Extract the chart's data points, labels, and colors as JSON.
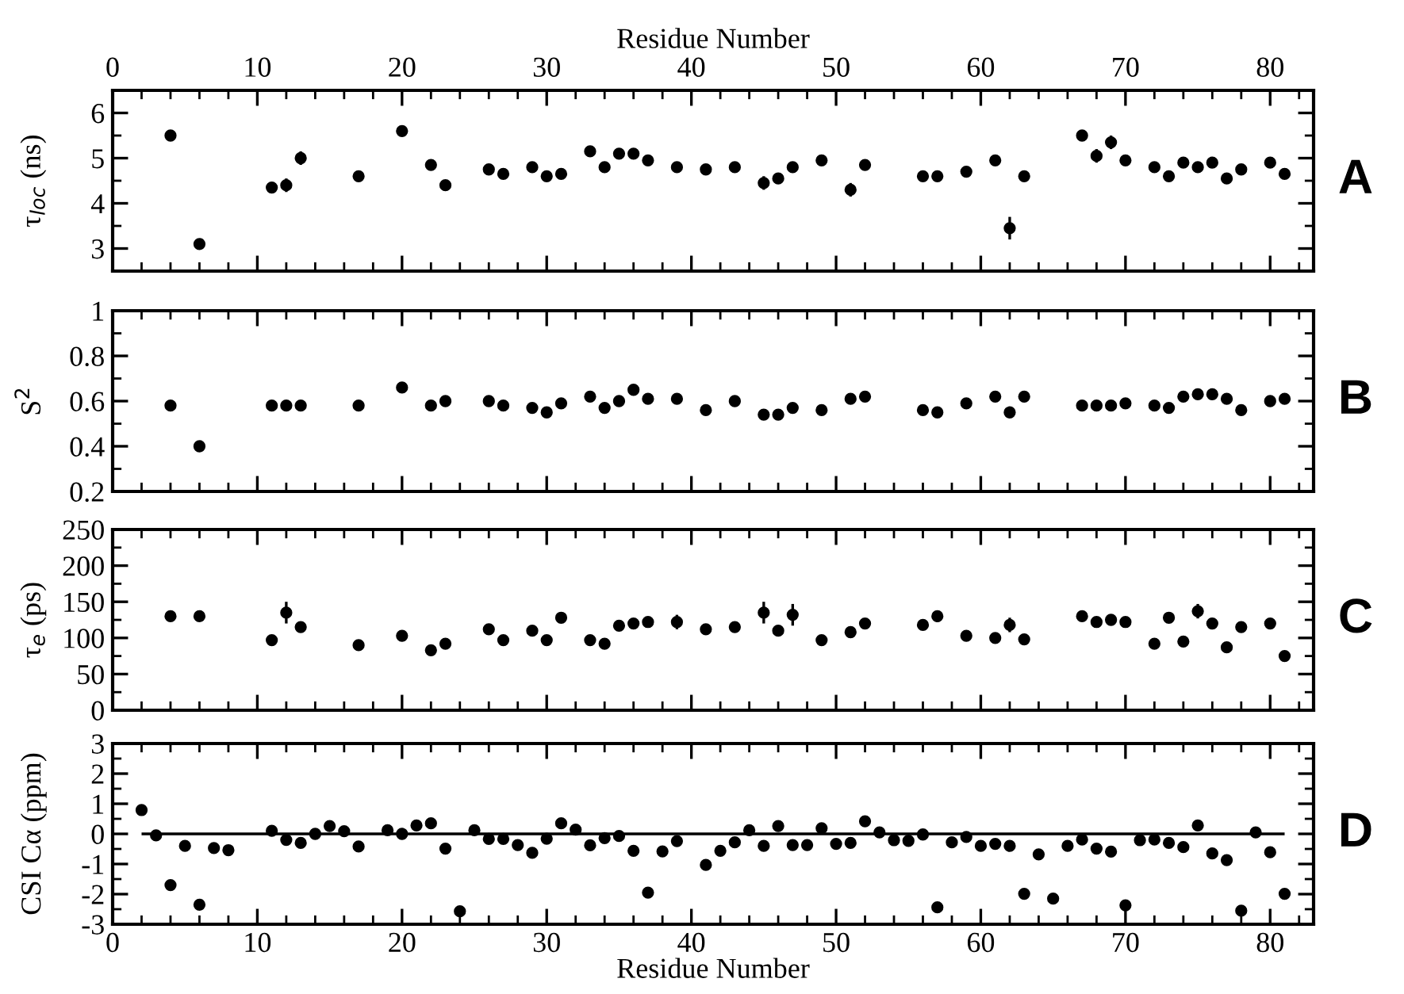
{
  "chart_data": [
    {
      "type": "scatter",
      "ylabel": "τ$_{loc}$ (ns)",
      "x2label": "Residue Number",
      "annotations": [
        "A"
      ],
      "x": [
        4,
        6,
        11,
        12,
        13,
        17,
        20,
        22,
        23,
        26,
        27,
        29,
        30,
        31,
        33,
        34,
        35,
        36,
        37,
        39,
        41,
        43,
        45,
        46,
        47,
        49,
        51,
        52,
        56,
        57,
        59,
        61,
        62,
        63,
        67,
        68,
        69,
        70,
        72,
        73,
        74,
        75,
        76,
        77,
        78,
        80,
        81
      ],
      "series": [
        {
          "color": "#000000",
          "values": [
            5.5,
            3.1,
            4.35,
            4.4,
            5.0,
            4.6,
            5.6,
            4.85,
            4.4,
            4.75,
            4.65,
            4.8,
            4.6,
            4.65,
            5.15,
            4.8,
            5.1,
            5.1,
            4.95,
            4.8,
            4.75,
            4.8,
            4.45,
            4.55,
            4.8,
            4.95,
            4.3,
            4.85,
            4.6,
            4.6,
            4.7,
            4.95,
            3.45,
            4.6,
            5.5,
            5.05,
            5.35,
            4.95,
            4.8,
            4.6,
            4.9,
            4.8,
            4.9,
            4.55,
            4.75,
            4.9,
            4.65
          ],
          "errors": [
            0.1,
            0.1,
            0.12,
            0.15,
            0.15,
            0.12,
            0.1,
            0.1,
            0.1,
            0.1,
            0.1,
            0.1,
            0.1,
            0.1,
            0.1,
            0.1,
            0.1,
            0.1,
            0.1,
            0.1,
            0.1,
            0.1,
            0.15,
            0.1,
            0.1,
            0.1,
            0.15,
            0.1,
            0.1,
            0.1,
            0.1,
            0.1,
            0.25,
            0.1,
            0.1,
            0.15,
            0.15,
            0.1,
            0.1,
            0.12,
            0.1,
            0.1,
            0.1,
            0.1,
            0.1,
            0.1,
            0.1
          ]
        }
      ],
      "xlim": [
        0,
        83
      ],
      "x2lim": [
        0,
        83
      ],
      "x2ticks": [
        0,
        10,
        20,
        30,
        40,
        50,
        60,
        70,
        80
      ],
      "ylim": [
        2.5,
        6.5
      ],
      "yticks": [
        3,
        4,
        5,
        6
      ],
      "tick_labels": "y",
      "marker": "circle",
      "grid": false,
      "legend": false
    },
    {
      "type": "scatter",
      "ylabel": "S$^{2}$",
      "annotations": [
        "B"
      ],
      "x": [
        4,
        6,
        11,
        12,
        13,
        17,
        20,
        22,
        23,
        26,
        27,
        29,
        30,
        31,
        33,
        34,
        35,
        36,
        37,
        39,
        41,
        43,
        45,
        46,
        47,
        49,
        51,
        52,
        56,
        57,
        59,
        61,
        62,
        63,
        67,
        68,
        69,
        70,
        72,
        73,
        74,
        75,
        76,
        77,
        78,
        80,
        81
      ],
      "series": [
        {
          "color": "#000000",
          "values": [
            0.58,
            0.4,
            0.58,
            0.58,
            0.58,
            0.58,
            0.66,
            0.58,
            0.6,
            0.6,
            0.58,
            0.57,
            0.55,
            0.59,
            0.62,
            0.57,
            0.6,
            0.65,
            0.61,
            0.61,
            0.56,
            0.6,
            0.54,
            0.54,
            0.57,
            0.56,
            0.61,
            0.62,
            0.56,
            0.55,
            0.59,
            0.62,
            0.55,
            0.62,
            0.58,
            0.58,
            0.58,
            0.59,
            0.58,
            0.57,
            0.62,
            0.63,
            0.63,
            0.61,
            0.56,
            0.6,
            0.61
          ]
        }
      ],
      "xlim": [
        0,
        83
      ],
      "ylim": [
        0.2,
        1
      ],
      "yticks": [
        0.2,
        0.4,
        0.6,
        0.8,
        1
      ],
      "tick_labels": "y",
      "marker": "circle",
      "grid": false,
      "legend": false
    },
    {
      "type": "scatter",
      "ylabel": "τ$_{e}$ (ps)",
      "annotations": [
        "C"
      ],
      "x": [
        4,
        6,
        11,
        12,
        13,
        17,
        20,
        22,
        23,
        26,
        27,
        29,
        30,
        31,
        33,
        34,
        35,
        36,
        37,
        39,
        41,
        43,
        45,
        46,
        47,
        49,
        51,
        52,
        56,
        57,
        59,
        61,
        62,
        63,
        67,
        68,
        69,
        70,
        72,
        73,
        74,
        75,
        76,
        77,
        78,
        80,
        81
      ],
      "series": [
        {
          "color": "#000000",
          "values": [
            130,
            130,
            97,
            135,
            115,
            90,
            103,
            83,
            92,
            112,
            97,
            110,
            97,
            128,
            97,
            92,
            117,
            120,
            122,
            122,
            112,
            115,
            135,
            110,
            132,
            97,
            108,
            120,
            118,
            130,
            103,
            100,
            118,
            98,
            130,
            122,
            125,
            122,
            92,
            128,
            95,
            137,
            120,
            87,
            115,
            120,
            75
          ],
          "errors": [
            null,
            null,
            null,
            15,
            null,
            null,
            null,
            null,
            null,
            null,
            null,
            null,
            null,
            null,
            null,
            null,
            null,
            null,
            null,
            10,
            null,
            null,
            15,
            null,
            15,
            null,
            null,
            null,
            null,
            8,
            null,
            null,
            10,
            null,
            null,
            null,
            null,
            null,
            null,
            null,
            null,
            10,
            null,
            null,
            null,
            null,
            null
          ]
        }
      ],
      "xlim": [
        0,
        83
      ],
      "ylim": [
        0,
        250
      ],
      "yticks": [
        0,
        50,
        100,
        150,
        200,
        250
      ],
      "tick_labels": "y",
      "marker": "circle",
      "grid": false,
      "legend": false
    },
    {
      "type": "scatter",
      "ylabel": "CSI Cα (ppm)",
      "xlabel": "Residue Number",
      "annotations": [
        "D"
      ],
      "x": [
        2,
        3,
        4,
        5,
        6,
        7,
        8,
        11,
        12,
        13,
        14,
        15,
        16,
        17,
        19,
        20,
        21,
        22,
        23,
        24,
        25,
        26,
        27,
        28,
        29,
        30,
        31,
        32,
        33,
        34,
        35,
        36,
        37,
        38,
        39,
        41,
        42,
        43,
        44,
        45,
        46,
        47,
        48,
        49,
        50,
        51,
        52,
        53,
        54,
        55,
        56,
        57,
        58,
        59,
        60,
        61,
        62,
        63,
        64,
        65,
        66,
        67,
        68,
        69,
        70,
        71,
        72,
        73,
        74,
        75,
        76,
        77,
        78,
        79,
        80,
        81
      ],
      "series": [
        {
          "color": "#000000",
          "values": [
            0.79,
            -0.05,
            -1.7,
            -0.4,
            -2.35,
            -0.47,
            -0.54,
            0.1,
            -0.2,
            -0.3,
            0,
            0.26,
            0.09,
            -0.42,
            0.12,
            0,
            0.28,
            0.35,
            -0.49,
            -2.57,
            0.12,
            -0.17,
            -0.17,
            -0.37,
            -0.63,
            -0.16,
            0.35,
            0.14,
            -0.38,
            -0.14,
            -0.07,
            -0.56,
            -1.95,
            -0.58,
            -0.24,
            -1.03,
            -0.56,
            -0.28,
            0.12,
            -0.4,
            0.26,
            -0.37,
            -0.37,
            0.19,
            -0.33,
            -0.3,
            0.42,
            0.05,
            -0.21,
            -0.23,
            -0.02,
            -2.44,
            -0.28,
            -0.1,
            -0.4,
            -0.33,
            -0.4,
            -1.99,
            -0.68,
            -2.15,
            -0.4,
            -0.19,
            -0.49,
            -0.59,
            -2.37,
            -0.21,
            -0.19,
            -0.3,
            -0.44,
            0.28,
            -0.65,
            -0.87,
            -2.55,
            0.05,
            -0.61,
            -1.99
          ]
        }
      ],
      "ref_lines": [
        {
          "axis": "y",
          "value": 0,
          "color": "#000000"
        }
      ],
      "xlim": [
        0,
        83
      ],
      "xticks": [
        0,
        10,
        20,
        30,
        40,
        50,
        60,
        70,
        80
      ],
      "ylim": [
        -3,
        3
      ],
      "yticks": [
        -3,
        -2,
        -1,
        0,
        1,
        2,
        3
      ],
      "marker": "circle",
      "grid": false,
      "legend": false
    }
  ]
}
